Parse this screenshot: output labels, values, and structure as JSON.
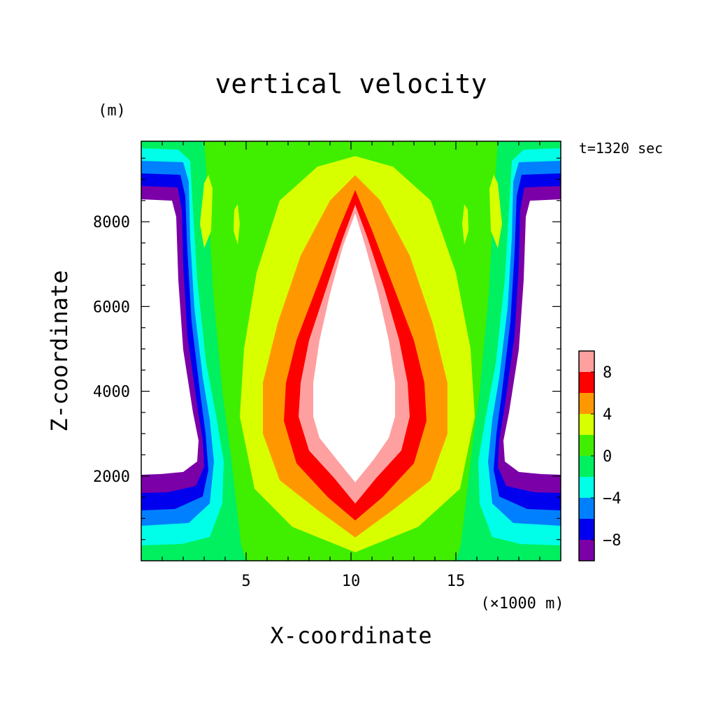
{
  "chart_data": {
    "type": "heatmap",
    "title": "vertical velocity",
    "xlabel": "X-coordinate",
    "ylabel": "Z-coordinate",
    "x_unit": "(×1000 m)",
    "y_unit": "(m)",
    "annotation": "t=1320 sec",
    "xlim": [
      0,
      20
    ],
    "ylim": [
      0,
      9900
    ],
    "x_ticks": [
      5,
      10,
      15
    ],
    "x_tick_labels": [
      "5",
      "10",
      "15"
    ],
    "y_ticks": [
      2000,
      4000,
      6000,
      8000
    ],
    "y_tick_labels": [
      "2000",
      "4000",
      "6000",
      "8000"
    ],
    "colorbar": {
      "levels": [
        -10,
        -8,
        -6,
        -4,
        -2,
        0,
        2,
        4,
        6,
        8,
        10
      ],
      "tick_values": [
        8,
        4,
        0,
        -4,
        -8
      ],
      "tick_labels": [
        "8",
        "4",
        "0",
        "−4",
        "−8"
      ],
      "colors": [
        "#7b00a8",
        "#0000ee",
        "#0080ff",
        "#00ffe8",
        "#00f060",
        "#40ee00",
        "#d8ff00",
        "#ff9800",
        "#ff0000",
        "#ffa0a0"
      ]
    },
    "contour_bands": [
      {
        "level": "w >= 10 (updraft core)",
        "color": "#ffffff",
        "polygon": [
          [
            10.2,
            8.2
          ],
          [
            10.7,
            7.4
          ],
          [
            11.3,
            6.3
          ],
          [
            11.8,
            5.2
          ],
          [
            12.1,
            4.2
          ],
          [
            12.1,
            3.4
          ],
          [
            11.8,
            2.9
          ],
          [
            11.1,
            2.4
          ],
          [
            10.2,
            1.85
          ],
          [
            9.3,
            2.4
          ],
          [
            8.5,
            2.9
          ],
          [
            8.2,
            3.4
          ],
          [
            8.2,
            4.2
          ],
          [
            8.5,
            5.2
          ],
          [
            9.0,
            6.3
          ],
          [
            9.6,
            7.4
          ]
        ]
      },
      {
        "level": "8 to 10",
        "color": "#ffa0a0",
        "polygon": [
          [
            10.2,
            8.4
          ],
          [
            10.8,
            7.6
          ],
          [
            11.6,
            6.4
          ],
          [
            12.3,
            5.2
          ],
          [
            12.7,
            4.2
          ],
          [
            12.8,
            3.4
          ],
          [
            12.4,
            2.6
          ],
          [
            11.2,
            1.95
          ],
          [
            10.2,
            1.35
          ],
          [
            9.2,
            1.95
          ],
          [
            8.0,
            2.6
          ],
          [
            7.5,
            3.4
          ],
          [
            7.6,
            4.2
          ],
          [
            8.0,
            5.2
          ],
          [
            8.8,
            6.4
          ],
          [
            9.6,
            7.6
          ]
        ]
      },
      {
        "level": "6 to 8",
        "color": "#ff0000",
        "polygon": [
          [
            10.2,
            8.75
          ],
          [
            11.0,
            7.8
          ],
          [
            12.0,
            6.5
          ],
          [
            13.0,
            5.2
          ],
          [
            13.5,
            4.2
          ],
          [
            13.6,
            3.3
          ],
          [
            13.0,
            2.3
          ],
          [
            11.5,
            1.5
          ],
          [
            10.2,
            0.95
          ],
          [
            8.9,
            1.5
          ],
          [
            7.4,
            2.3
          ],
          [
            6.8,
            3.3
          ],
          [
            6.9,
            4.2
          ],
          [
            7.4,
            5.2
          ],
          [
            8.4,
            6.5
          ],
          [
            9.4,
            7.8
          ]
        ]
      },
      {
        "level": "4 to 6",
        "color": "#ff9800",
        "polygon": [
          [
            10.2,
            9.1
          ],
          [
            11.4,
            8.5
          ],
          [
            12.8,
            7.2
          ],
          [
            13.9,
            5.6
          ],
          [
            14.6,
            4.2
          ],
          [
            14.6,
            3.0
          ],
          [
            13.8,
            1.9
          ],
          [
            12.0,
            1.2
          ],
          [
            10.2,
            0.55
          ],
          [
            8.4,
            1.2
          ],
          [
            6.6,
            1.9
          ],
          [
            5.8,
            3.0
          ],
          [
            5.8,
            4.2
          ],
          [
            6.5,
            5.6
          ],
          [
            7.6,
            7.2
          ],
          [
            9.0,
            8.5
          ]
        ]
      },
      {
        "level": "2 to 4",
        "color": "#d8ff00",
        "polygon": [
          [
            10.2,
            9.55
          ],
          [
            12.0,
            9.3
          ],
          [
            13.8,
            8.5
          ],
          [
            15.0,
            6.8
          ],
          [
            15.7,
            5.0
          ],
          [
            15.9,
            3.4
          ],
          [
            15.2,
            1.7
          ],
          [
            13.2,
            0.8
          ],
          [
            10.2,
            0.2
          ],
          [
            7.2,
            0.8
          ],
          [
            5.4,
            1.7
          ],
          [
            4.7,
            3.4
          ],
          [
            4.9,
            5.0
          ],
          [
            5.5,
            6.8
          ],
          [
            6.6,
            8.5
          ],
          [
            8.4,
            9.3
          ]
        ]
      }
    ]
  }
}
